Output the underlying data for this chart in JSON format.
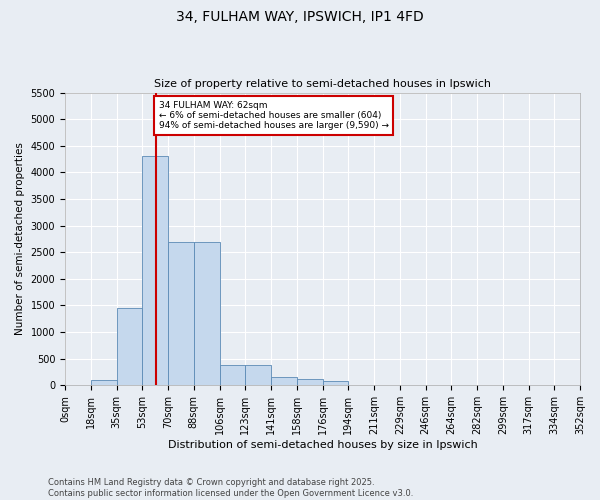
{
  "title1": "34, FULHAM WAY, IPSWICH, IP1 4FD",
  "title2": "Size of property relative to semi-detached houses in Ipswich",
  "xlabel": "Distribution of semi-detached houses by size in Ipswich",
  "ylabel": "Number of semi-detached properties",
  "annotation_title": "34 FULHAM WAY: 62sqm",
  "annotation_line1": "← 6% of semi-detached houses are smaller (604)",
  "annotation_line2": "94% of semi-detached houses are larger (9,590) →",
  "property_size": 62,
  "bar_color": "#c5d8ed",
  "bar_edge_color": "#5b8ab5",
  "vline_color": "#cc0000",
  "annotation_box_color": "#cc0000",
  "bin_edges": [
    0,
    17.6,
    35.2,
    52.8,
    70.4,
    88.0,
    105.6,
    123.2,
    140.8,
    158.4,
    176.0,
    193.6,
    211.2,
    228.8,
    246.4,
    264.0,
    281.6,
    299.2,
    316.8,
    334.4,
    352.0
  ],
  "bin_labels": [
    "0sqm",
    "18sqm",
    "35sqm",
    "53sqm",
    "70sqm",
    "88sqm",
    "106sqm",
    "123sqm",
    "141sqm",
    "158sqm",
    "176sqm",
    "194sqm",
    "211sqm",
    "229sqm",
    "246sqm",
    "264sqm",
    "282sqm",
    "299sqm",
    "317sqm",
    "334sqm",
    "352sqm"
  ],
  "counts": [
    5,
    100,
    1450,
    4300,
    2700,
    2700,
    380,
    380,
    165,
    110,
    80,
    0,
    0,
    0,
    0,
    0,
    0,
    0,
    0,
    0
  ],
  "ylim": [
    0,
    5500
  ],
  "yticks": [
    0,
    500,
    1000,
    1500,
    2000,
    2500,
    3000,
    3500,
    4000,
    4500,
    5000,
    5500
  ],
  "footer1": "Contains HM Land Registry data © Crown copyright and database right 2025.",
  "footer2": "Contains public sector information licensed under the Open Government Licence v3.0.",
  "bg_color": "#e8edf3",
  "grid_color": "#ffffff",
  "title1_fontsize": 10,
  "title2_fontsize": 8,
  "xlabel_fontsize": 8,
  "ylabel_fontsize": 7.5,
  "tick_fontsize": 7,
  "footer_fontsize": 6
}
